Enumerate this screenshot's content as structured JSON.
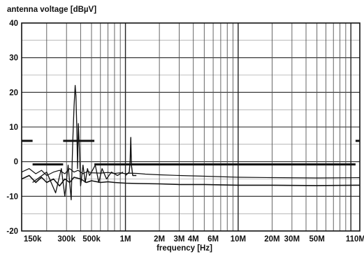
{
  "chart_data": {
    "type": "line",
    "title": "",
    "ylabel": "antenna voltage [dBµV]",
    "xlabel": "frequency [Hz]",
    "x_scale": "log",
    "xlim": [
      120000,
      120000000
    ],
    "ylim": [
      -20,
      40
    ],
    "grid": true,
    "y_ticks": [
      40,
      30,
      20,
      10,
      0,
      -10,
      -20
    ],
    "y_tick_labels": [
      "40",
      "30",
      "20",
      "10",
      "0",
      "-10",
      "-20"
    ],
    "x_ticks": [
      150000,
      300000,
      500000,
      1000000,
      2000000,
      3000000,
      4000000,
      6000000,
      10000000,
      20000000,
      30000000,
      50000000,
      110000000
    ],
    "x_tick_labels": [
      "150k",
      "300k",
      "500k",
      "1M",
      "2M",
      "3M",
      "4M",
      "6M",
      "10M",
      "20M",
      "30M",
      "50M",
      "110M"
    ],
    "limit_line": {
      "segments": [
        {
          "x": [
            120000,
            150000
          ],
          "y": [
            6,
            6
          ]
        },
        {
          "x": [
            150000,
            280000
          ],
          "y": [
            -0.8,
            -0.8
          ]
        },
        {
          "x": [
            280000,
            530000
          ],
          "y": [
            6,
            6
          ]
        },
        {
          "x": [
            530000,
            2000000
          ],
          "y": [
            -0.8,
            -0.8
          ]
        },
        {
          "x": [
            2000000,
            110000000
          ],
          "y": [
            -0.8,
            -0.8
          ]
        },
        {
          "x": [
            110000000,
            120000000
          ],
          "y": [
            6,
            6
          ]
        }
      ]
    },
    "series": [
      {
        "x": [
          120000,
          140000,
          160000,
          180000,
          200000,
          230000,
          260000,
          290000,
          320000,
          350000,
          380000,
          420000,
          460000,
          500000,
          600000,
          700000,
          800000,
          900000,
          1000000,
          1100000,
          1300000,
          1500000,
          2000000,
          3000000,
          5000000,
          10000000,
          20000000,
          50000000,
          120000000
        ],
        "y": [
          -3,
          -2,
          -3.5,
          -2.5,
          -4,
          -3,
          -2.5,
          -3.5,
          -2,
          -3,
          -2.5,
          -3.5,
          -2.8,
          -3.2,
          -3.3,
          -3.1,
          -3.4,
          -3.2,
          -3.5,
          -3.3,
          -3.4,
          -3.6,
          -3.8,
          -4,
          -4.2,
          -4.5,
          -4.6,
          -4.7,
          -4.6
        ]
      },
      {
        "x": [
          120000,
          140000,
          160000,
          180000,
          200000,
          230000,
          260000,
          290000,
          320000,
          350000,
          400000,
          450000,
          500000,
          600000,
          700000,
          800000,
          1000000,
          1300000,
          2000000,
          3000000,
          5000000,
          10000000,
          20000000,
          50000000,
          120000000
        ],
        "y": [
          -5,
          -4,
          -6,
          -4.5,
          -6,
          -5,
          -7,
          -5,
          -6,
          -4.5,
          -5,
          -6,
          -5.5,
          -6,
          -5.8,
          -6,
          -6.2,
          -6.3,
          -6.4,
          -6.6,
          -6.6,
          -6.8,
          -6.8,
          -6.9,
          -6.8
        ]
      },
      {
        "x": [
          150000,
          200000,
          240000,
          270000,
          290000,
          310000,
          330000,
          340000,
          350000,
          358000,
          364000,
          370000,
          376000,
          382000,
          390000,
          400000,
          420000,
          440000,
          460000,
          480000,
          500000,
          540000,
          580000,
          620000,
          680000,
          750000,
          850000,
          950000
        ],
        "y": [
          -6,
          -3,
          -9,
          -2,
          -10,
          -1,
          -11,
          5,
          16,
          22,
          19,
          10,
          -2,
          11,
          4,
          -7,
          -1,
          -6,
          -2,
          -4,
          -3,
          -1,
          -6,
          -2,
          -5,
          -3,
          -4,
          -3
        ]
      },
      {
        "x": [
          1000000,
          1080000,
          1100000,
          1115000,
          1130000,
          1160000,
          1250000
        ],
        "y": [
          -4,
          -3,
          0,
          7,
          -1,
          -4,
          -4
        ]
      }
    ]
  }
}
